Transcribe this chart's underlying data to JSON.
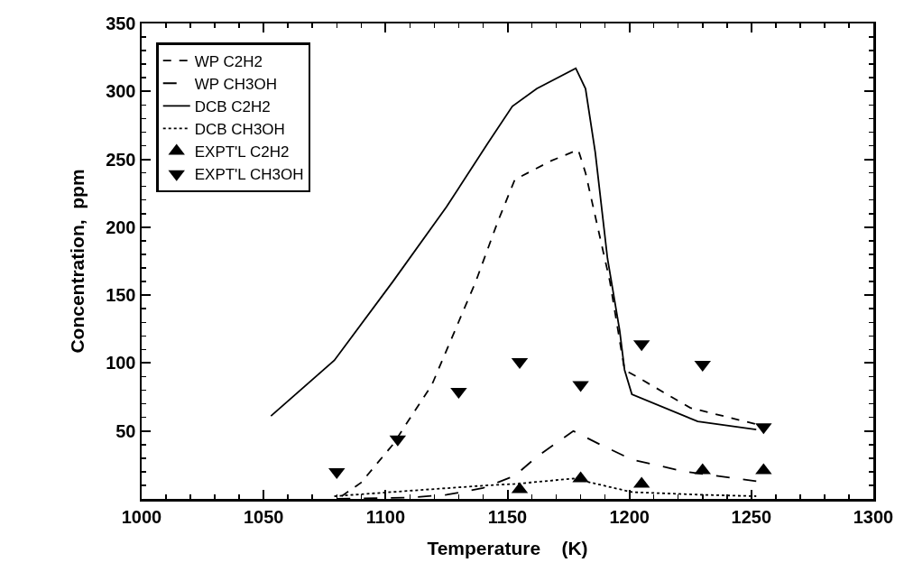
{
  "chart_data": {
    "type": "line",
    "xlabel": "Temperature    (K)",
    "ylabel": "Concentration,  ppm",
    "xlim": [
      1000,
      1300
    ],
    "xticks": [
      1000,
      {
        "value": 1010,
        "label": null
      },
      {
        "value": 1020,
        "label": null
      },
      {
        "value": 1030,
        "label": null
      },
      {
        "value": 1040,
        "label": null
      },
      1050,
      {
        "value": 1060,
        "label": null
      },
      {
        "value": 1070,
        "label": null
      },
      {
        "value": 1080,
        "label": null
      },
      {
        "value": 1090,
        "label": null
      },
      1100,
      {
        "value": 1110,
        "label": null
      },
      {
        "value": 1120,
        "label": null
      },
      {
        "value": 1130,
        "label": null
      },
      {
        "value": 1140,
        "label": null
      },
      1150,
      {
        "value": 1160,
        "label": null
      },
      {
        "value": 1170,
        "label": null
      },
      {
        "value": 1180,
        "label": null
      },
      {
        "value": 1190,
        "label": null
      },
      1200,
      {
        "value": 1210,
        "label": null
      },
      {
        "value": 1220,
        "label": null
      },
      {
        "value": 1230,
        "label": null
      },
      {
        "value": 1240,
        "label": null
      },
      1250,
      {
        "value": 1260,
        "label": null
      },
      {
        "value": 1270,
        "label": null
      },
      {
        "value": 1280,
        "label": null
      },
      {
        "value": 1290,
        "label": null
      },
      1300
    ],
    "ylim": [
      0,
      350
    ],
    "yticks": [
      {
        "value": 0,
        "label": null
      },
      {
        "value": 10,
        "label": null
      },
      {
        "value": 20,
        "label": null
      },
      {
        "value": 30,
        "label": null
      },
      {
        "value": 40,
        "label": null
      },
      50,
      {
        "value": 60,
        "label": null
      },
      {
        "value": 70,
        "label": null
      },
      {
        "value": 80,
        "label": null
      },
      {
        "value": 90,
        "label": null
      },
      100,
      {
        "value": 110,
        "label": null
      },
      {
        "value": 120,
        "label": null
      },
      {
        "value": 130,
        "label": null
      },
      {
        "value": 140,
        "label": null
      },
      150,
      {
        "value": 160,
        "label": null
      },
      {
        "value": 170,
        "label": null
      },
      {
        "value": 180,
        "label": null
      },
      {
        "value": 190,
        "label": null
      },
      200,
      {
        "value": 210,
        "label": null
      },
      {
        "value": 220,
        "label": null
      },
      {
        "value": 230,
        "label": null
      },
      {
        "value": 240,
        "label": null
      },
      250,
      {
        "value": 260,
        "label": null
      },
      {
        "value": 270,
        "label": null
      },
      {
        "value": 280,
        "label": null
      },
      {
        "value": 290,
        "label": null
      },
      300,
      {
        "value": 310,
        "label": null
      },
      {
        "value": 320,
        "label": null
      },
      {
        "value": 330,
        "label": null
      },
      {
        "value": 340,
        "label": null
      },
      350
    ],
    "grid": false,
    "legend": "top left",
    "series": [
      {
        "name": "WP C2H2",
        "line_style": "dashed",
        "marker": "none",
        "color": "#000000",
        "x": [
          1082,
          1090,
          1103,
          1119,
          1137,
          1146,
          1153,
          1168,
          1179,
          1182,
          1187,
          1192,
          1198,
          1202,
          1225,
          1252
        ],
        "values": [
          2,
          12,
          40,
          84,
          160,
          204,
          235,
          249,
          257,
          240,
          200,
          160,
          95,
          91,
          67,
          55
        ]
      },
      {
        "name": "WP CH3OH",
        "line_style": "longdash",
        "marker": "none",
        "color": "#000000",
        "x": [
          1080,
          1110,
          1125,
          1140,
          1153,
          1162,
          1177,
          1188,
          1201,
          1223,
          1252
        ],
        "values": [
          0,
          1,
          3,
          8,
          17,
          31,
          50,
          40,
          29,
          20,
          13
        ]
      },
      {
        "name": "DCB C2H2",
        "line_style": "solid",
        "marker": "none",
        "color": "#000000",
        "x": [
          1053,
          1079,
          1103,
          1125,
          1142,
          1152,
          1162,
          1178,
          1182,
          1186,
          1191,
          1196,
          1198,
          1201,
          1228,
          1252
        ],
        "values": [
          61,
          102,
          160,
          215,
          262,
          289,
          302,
          317,
          302,
          255,
          177,
          124,
          95,
          77,
          57,
          51
        ]
      },
      {
        "name": "DCB CH3OH",
        "line_style": "dotted",
        "marker": "none",
        "color": "#000000",
        "x": [
          1079,
          1110,
          1142,
          1153,
          1177,
          1201,
          1230,
          1252
        ],
        "values": [
          2,
          6,
          10,
          11,
          15,
          5,
          3,
          2
        ]
      },
      {
        "name": "EXPT'L C2H2",
        "type": "scatter",
        "marker": "triangle",
        "color": "#000000",
        "x": [
          1155,
          1180,
          1205,
          1230,
          1255
        ],
        "values": [
          7,
          15,
          11,
          21,
          21
        ]
      },
      {
        "name": "EXPT'L CH3OH",
        "type": "scatter",
        "marker": "triangle-down",
        "color": "#000000",
        "x": [
          1080,
          1105,
          1130,
          1155,
          1180,
          1205,
          1230,
          1255
        ],
        "values": [
          20,
          44,
          79,
          101,
          84,
          114,
          99,
          53
        ]
      }
    ]
  }
}
